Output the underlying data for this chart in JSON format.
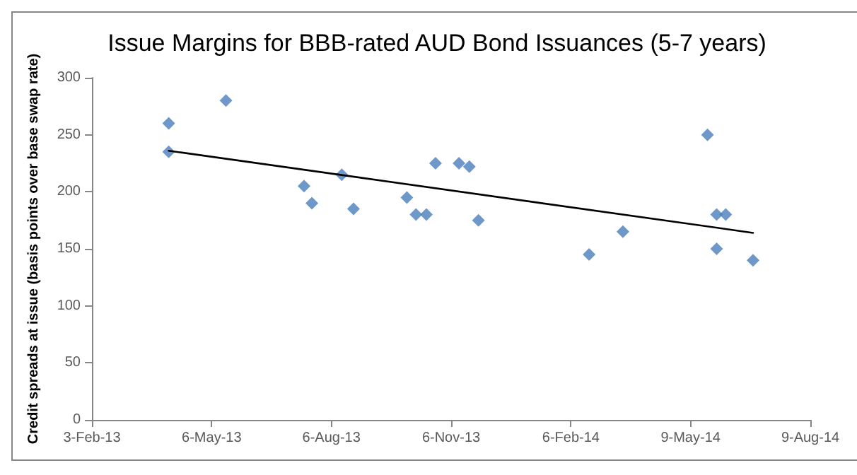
{
  "chart_data": {
    "type": "scatter",
    "title": "Issue Margins for BBB-rated AUD Bond Issuances (5-7 years)",
    "ylabel": "Credit spreads at issue (basis points over base swap rate)",
    "marker": "diamond",
    "grid": false,
    "xlim": [
      "2013-02-03",
      "2014-08-09"
    ],
    "xticks": [
      {
        "value": "2013-02-03",
        "label": "3-Feb-13"
      },
      {
        "value": "2013-05-06",
        "label": "6-May-13"
      },
      {
        "value": "2013-08-06",
        "label": "6-Aug-13"
      },
      {
        "value": "2013-11-06",
        "label": "6-Nov-13"
      },
      {
        "value": "2014-02-06",
        "label": "6-Feb-14"
      },
      {
        "value": "2014-05-09",
        "label": "9-May-14"
      },
      {
        "value": "2014-08-09",
        "label": "9-Aug-14"
      }
    ],
    "ylim": [
      0,
      300
    ],
    "yticks": [
      0,
      50,
      100,
      150,
      200,
      250,
      300
    ],
    "series": [
      {
        "color": "#4a7ebb",
        "x": [
          "2013-04-03",
          "2013-04-03",
          "2013-05-17",
          "2013-07-16",
          "2013-07-22",
          "2013-08-14",
          "2013-08-23",
          "2013-10-03",
          "2013-10-10",
          "2013-10-18",
          "2013-10-25",
          "2013-11-12",
          "2013-11-20",
          "2013-11-27",
          "2014-02-20",
          "2014-03-18",
          "2014-05-22",
          "2014-05-29",
          "2014-06-05",
          "2014-05-29",
          "2014-06-26"
        ],
        "values": [
          260,
          235,
          280,
          205,
          190,
          215,
          185,
          195,
          180,
          180,
          225,
          225,
          222,
          175,
          145,
          165,
          250,
          180,
          180,
          150,
          140
        ]
      },
      {
        "type": "line",
        "color": "#000000",
        "marker": "none",
        "line_style": "solid",
        "x": [
          "2013-04-03",
          "2014-06-26"
        ],
        "values": [
          236,
          164
        ]
      }
    ]
  }
}
